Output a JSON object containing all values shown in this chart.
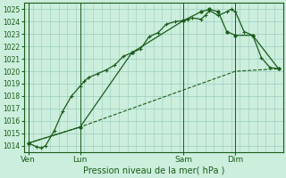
{
  "title": "Pression niveau de la mer( hPa )",
  "bg_color": "#cceedd",
  "plot_bg": "#cceedd",
  "grid_color": "#99ccbb",
  "line_color": "#1a5c1a",
  "ylim": [
    1013.5,
    1025.5
  ],
  "xlim": [
    0,
    30
  ],
  "yticks": [
    1014,
    1015,
    1016,
    1017,
    1018,
    1019,
    1020,
    1021,
    1022,
    1023,
    1024,
    1025
  ],
  "xtick_labels": [
    "Ven",
    "Lun",
    "Sam",
    "Dim"
  ],
  "xtick_positions": [
    0.5,
    6.5,
    18.5,
    24.5
  ],
  "vlines": [
    0.5,
    6.5,
    18.5,
    24.5
  ],
  "line1_x": [
    0.5,
    1.5,
    2.0,
    2.5,
    3.5,
    4.5,
    5.5,
    6.5,
    7.0,
    7.5,
    8.5,
    9.5,
    10.5,
    11.5,
    12.5,
    13.5,
    14.5,
    15.5,
    16.5,
    17.5,
    18.5,
    19.0,
    19.5,
    20.5,
    21.0,
    21.5,
    22.5,
    23.5,
    24.0,
    24.5,
    25.5,
    26.5,
    27.5,
    28.5,
    29.5
  ],
  "line1_y": [
    1014.2,
    1013.9,
    1013.8,
    1014.0,
    1015.2,
    1016.8,
    1018.0,
    1018.8,
    1019.2,
    1019.5,
    1019.8,
    1020.1,
    1020.5,
    1021.2,
    1021.5,
    1021.8,
    1022.8,
    1023.1,
    1023.8,
    1024.0,
    1024.1,
    1024.2,
    1024.3,
    1024.2,
    1024.5,
    1024.9,
    1024.5,
    1024.8,
    1025.0,
    1024.8,
    1023.2,
    1022.9,
    1021.1,
    1020.3,
    1020.2
  ],
  "line2_x": [
    0.5,
    6.5,
    12.5,
    18.5,
    24.5,
    29.5
  ],
  "line2_y": [
    1014.2,
    1015.5,
    1017.0,
    1018.5,
    1020.0,
    1020.2
  ],
  "line3_x": [
    0.5,
    6.5,
    12.5,
    18.5,
    20.5,
    21.5,
    22.5,
    23.5,
    24.5,
    26.5,
    29.5
  ],
  "line3_y": [
    1014.2,
    1015.5,
    1021.5,
    1024.1,
    1024.8,
    1025.0,
    1024.8,
    1023.2,
    1022.9,
    1022.9,
    1020.2
  ],
  "title_fontsize": 7,
  "tick_fontsize": 5.5
}
